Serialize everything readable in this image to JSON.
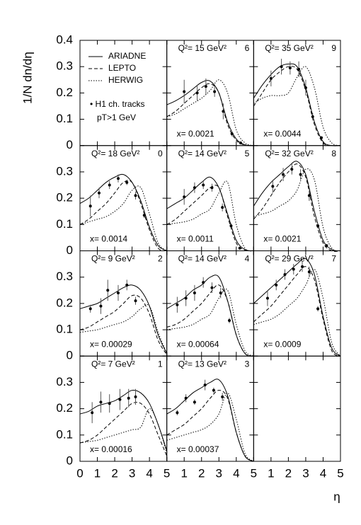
{
  "chart_data": {
    "type": "line",
    "ylabel": "1/N dn/dη",
    "xlabel": "η",
    "xlim": [
      0,
      5
    ],
    "ylim": [
      0,
      0.4
    ],
    "xticks": [
      0,
      1,
      2,
      3,
      4,
      5
    ],
    "yticks": [
      0,
      0.1,
      0.2,
      0.3,
      0.4
    ],
    "series": [
      {
        "name": "ARIADNE",
        "color": "#000000",
        "dash": "solid"
      },
      {
        "name": "LEPTO",
        "color": "#000000",
        "dash": "dashed"
      },
      {
        "name": "HERWIG",
        "color": "#000000",
        "dash": "dotted"
      }
    ],
    "points_name": "• H1 ch. tracks",
    "points_note": "pT>1 GeV",
    "curve_x": [
      0,
      0.5,
      1,
      1.5,
      2,
      2.5,
      3,
      3.5,
      4,
      4.5,
      5
    ],
    "panels": [
      {
        "q2": "Q²= 15 GeV²",
        "index": "6",
        "xbj": "x= 0.0021",
        "x": [
          1.0,
          1.75,
          2.25,
          2.75,
          3.25,
          3.75,
          4.25
        ],
        "y": [
          0.205,
          0.2,
          0.225,
          0.205,
          0.13,
          0.045,
          0.01
        ],
        "err": [
          0.045,
          0.03,
          0.03,
          0.02,
          0.03,
          0.01,
          0.005
        ],
        "curves": [
          [
            0.155,
            0.17,
            0.19,
            0.215,
            0.24,
            0.245,
            0.2,
            0.09,
            0.025,
            0.003,
            0
          ],
          [
            0.11,
            0.13,
            0.16,
            0.19,
            0.22,
            0.235,
            0.2,
            0.08,
            0.02,
            0.002,
            0
          ],
          [
            0.11,
            0.12,
            0.14,
            0.16,
            0.18,
            0.21,
            0.25,
            0.2,
            0.06,
            0.01,
            0
          ]
        ]
      },
      {
        "q2": "Q²= 35 GeV²",
        "index": "9",
        "xbj": "x= 0.0044",
        "x": [
          1.0,
          1.6,
          2.1,
          2.6,
          3.0,
          3.4,
          3.9
        ],
        "y": [
          0.255,
          0.3,
          0.295,
          0.29,
          0.22,
          0.11,
          0.03
        ],
        "err": [
          0.03,
          0.03,
          0.025,
          0.03,
          0.03,
          0.015,
          0.005
        ],
        "curves": [
          [
            0.18,
            0.23,
            0.27,
            0.3,
            0.31,
            0.3,
            0.22,
            0.09,
            0.015,
            0,
            0
          ],
          [
            0.15,
            0.2,
            0.25,
            0.28,
            0.3,
            0.29,
            0.21,
            0.08,
            0.01,
            0,
            0
          ],
          [
            0.16,
            0.18,
            0.19,
            0.19,
            0.2,
            0.26,
            0.3,
            0.22,
            0.07,
            0.01,
            0
          ]
        ]
      },
      {
        "q2": "Q²= 18 GeV²",
        "index": "0",
        "xbj": "x= 0.0014",
        "x": [
          0.6,
          1.1,
          1.7,
          2.2,
          2.7,
          3.2,
          3.7
        ],
        "y": [
          0.17,
          0.22,
          0.25,
          0.275,
          0.26,
          0.21,
          0.135
        ],
        "err": [
          0.04,
          0.02,
          0.015,
          0.015,
          0.01,
          0.015,
          0.01
        ],
        "curves": [
          [
            0.18,
            0.2,
            0.23,
            0.26,
            0.28,
            0.29,
            0.26,
            0.19,
            0.09,
            0.02,
            0
          ],
          [
            0.1,
            0.12,
            0.15,
            0.18,
            0.22,
            0.26,
            0.26,
            0.18,
            0.08,
            0.01,
            0
          ],
          [
            0.1,
            0.11,
            0.12,
            0.13,
            0.15,
            0.18,
            0.23,
            0.24,
            0.14,
            0.03,
            0
          ]
        ]
      },
      {
        "q2": "Q²= 14 GeV²",
        "index": "5",
        "xbj": "x= 0.0011",
        "x": [
          1.0,
          1.6,
          2.1,
          2.6,
          3.2,
          3.7,
          4.2
        ],
        "y": [
          0.205,
          0.24,
          0.25,
          0.24,
          0.165,
          0.095,
          0.01
        ],
        "err": [
          0.03,
          0.02,
          0.015,
          0.015,
          0.015,
          0.01,
          0.005
        ],
        "curves": [
          [
            0.16,
            0.18,
            0.2,
            0.23,
            0.26,
            0.28,
            0.24,
            0.14,
            0.04,
            0.005,
            0
          ],
          [
            0.1,
            0.12,
            0.15,
            0.18,
            0.21,
            0.24,
            0.24,
            0.13,
            0.03,
            0.003,
            0
          ],
          [
            0.1,
            0.105,
            0.11,
            0.12,
            0.14,
            0.16,
            0.22,
            0.26,
            0.1,
            0.01,
            0
          ]
        ]
      },
      {
        "q2": "Q²= 32 GeV²",
        "index": "8",
        "xbj": "x= 0.0021",
        "x": [
          1.1,
          1.7,
          2.2,
          2.7,
          3.2,
          3.7,
          4.2
        ],
        "y": [
          0.245,
          0.29,
          0.31,
          0.29,
          0.21,
          0.095,
          0.02
        ],
        "err": [
          0.025,
          0.025,
          0.02,
          0.02,
          0.02,
          0.01,
          0.005
        ],
        "curves": [
          [
            0.17,
            0.22,
            0.26,
            0.29,
            0.32,
            0.34,
            0.29,
            0.15,
            0.04,
            0.005,
            0
          ],
          [
            0.12,
            0.16,
            0.21,
            0.26,
            0.3,
            0.33,
            0.28,
            0.13,
            0.03,
            0,
            0
          ],
          [
            0.13,
            0.14,
            0.15,
            0.17,
            0.19,
            0.23,
            0.31,
            0.27,
            0.09,
            0.01,
            0
          ]
        ]
      },
      {
        "q2": "Q²=  9 GeV²",
        "index": "2",
        "xbj": "x= 0.00029",
        "x": [
          0.6,
          1.2,
          1.6,
          2.2,
          2.7,
          3.2
        ],
        "y": [
          0.18,
          0.19,
          0.25,
          0.24,
          0.27,
          0.21
        ],
        "err": [
          0.015,
          0.03,
          0.04,
          0.03,
          0.02,
          0.015
        ],
        "curves": [
          [
            0.18,
            0.19,
            0.2,
            0.22,
            0.24,
            0.26,
            0.27,
            0.25,
            0.19,
            0.08,
            0.01
          ],
          [
            0.1,
            0.11,
            0.13,
            0.15,
            0.17,
            0.2,
            0.23,
            0.22,
            0.16,
            0.06,
            0.005
          ],
          [
            0.09,
            0.095,
            0.1,
            0.11,
            0.12,
            0.13,
            0.15,
            0.18,
            0.19,
            0.09,
            0.01
          ]
        ]
      },
      {
        "q2": "Q²= 14 GeV²",
        "index": "4",
        "xbj": "x= 0.00064",
        "x": [
          0.6,
          1.1,
          1.6,
          2.1,
          2.6,
          3.1,
          3.6
        ],
        "y": [
          0.195,
          0.22,
          0.24,
          0.28,
          0.26,
          0.24,
          0.135
        ],
        "err": [
          0.03,
          0.03,
          0.03,
          0.02,
          0.02,
          0.02,
          0.01
        ],
        "curves": [
          [
            0.18,
            0.2,
            0.22,
            0.25,
            0.27,
            0.3,
            0.3,
            0.21,
            0.08,
            0.01,
            0
          ],
          [
            0.11,
            0.12,
            0.14,
            0.17,
            0.2,
            0.24,
            0.27,
            0.21,
            0.08,
            0.01,
            0
          ],
          [
            0.1,
            0.105,
            0.11,
            0.12,
            0.14,
            0.16,
            0.22,
            0.25,
            0.12,
            0.02,
            0
          ]
        ]
      },
      {
        "q2": "Q²= 29 GeV²",
        "index": "7",
        "xbj": "x= 0.0009",
        "x": [
          0.8,
          1.3,
          1.8,
          2.3,
          2.8,
          3.2,
          3.7
        ],
        "y": [
          0.22,
          0.27,
          0.31,
          0.33,
          0.34,
          0.32,
          0.18
        ],
        "err": [
          0.03,
          0.02,
          0.02,
          0.02,
          0.02,
          0.02,
          0.01
        ],
        "curves": [
          [
            0.2,
            0.23,
            0.26,
            0.29,
            0.32,
            0.35,
            0.37,
            0.31,
            0.15,
            0.03,
            0
          ],
          [
            0.13,
            0.16,
            0.19,
            0.23,
            0.27,
            0.31,
            0.34,
            0.29,
            0.14,
            0.02,
            0
          ],
          [
            0.12,
            0.13,
            0.14,
            0.16,
            0.19,
            0.22,
            0.27,
            0.33,
            0.22,
            0.05,
            0
          ]
        ]
      },
      {
        "q2": "Q²=  7 GeV²",
        "index": "1",
        "xbj": "x= 0.00016",
        "x": [
          0.7,
          1.2,
          1.7,
          2.3,
          2.8,
          3.2
        ],
        "y": [
          0.185,
          0.225,
          0.22,
          0.235,
          0.24,
          0.245
        ],
        "err": [
          0.04,
          0.04,
          0.035,
          0.04,
          0.035,
          0.03
        ],
        "curves": [
          [
            0.18,
            0.19,
            0.21,
            0.22,
            0.23,
            0.25,
            0.27,
            0.26,
            0.22,
            0.14,
            0.04
          ],
          [
            0.07,
            0.08,
            0.1,
            0.13,
            0.16,
            0.19,
            0.22,
            0.22,
            0.18,
            0.1,
            0.02
          ],
          [
            0.07,
            0.075,
            0.08,
            0.09,
            0.1,
            0.11,
            0.12,
            0.13,
            0.2,
            0.14,
            0.03
          ]
        ]
      },
      {
        "q2": "Q²= 13 GeV²",
        "index": "3",
        "xbj": "x= 0.00037",
        "x": [
          0.6,
          1.1,
          1.6,
          2.2,
          2.7,
          3.2
        ],
        "y": [
          0.185,
          0.24,
          0.225,
          0.29,
          0.27,
          0.245
        ],
        "err": [
          0.01,
          0.015,
          0.01,
          0.02,
          0.01,
          0.015
        ],
        "curves": [
          [
            0.18,
            0.2,
            0.23,
            0.26,
            0.28,
            0.3,
            0.31,
            0.25,
            0.11,
            0.02,
            0
          ],
          [
            0.1,
            0.12,
            0.14,
            0.17,
            0.2,
            0.24,
            0.27,
            0.24,
            0.11,
            0.02,
            0
          ],
          [
            0.08,
            0.09,
            0.1,
            0.11,
            0.12,
            0.14,
            0.18,
            0.26,
            0.16,
            0.03,
            0
          ]
        ]
      }
    ]
  }
}
